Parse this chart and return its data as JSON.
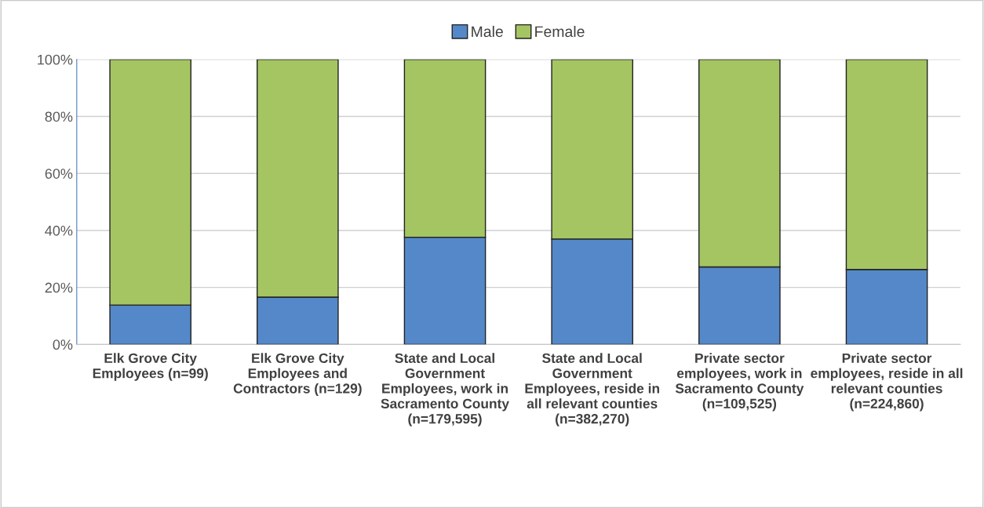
{
  "chart_data": {
    "type": "bar",
    "stacked": true,
    "categories": [
      "Elk Grove City Employees (n=99)",
      "Elk Grove City Employees and Contractors (n=129)",
      "State and Local Government Employees, work in Sacramento County (n=179,595)",
      "State and Local Government Employees, reside in all relevant counties (n=382,270)",
      "Private sector employees, work in Sacramento County (n=109,525)",
      "Private sector employees, reside in all relevant counties (n=224,860)"
    ],
    "series": [
      {
        "name": "Male",
        "color": "#5588c8",
        "values": [
          13.8,
          16.6,
          37.6,
          37.0,
          27.2,
          26.3
        ]
      },
      {
        "name": "Female",
        "color": "#a4c562",
        "values": [
          86.2,
          83.4,
          62.4,
          63.0,
          72.8,
          73.7
        ]
      }
    ],
    "ylim": [
      0,
      100
    ],
    "yticks": [
      {
        "value": 0,
        "label": "0%"
      },
      {
        "value": 20,
        "label": "20%"
      },
      {
        "value": 40,
        "label": "40%"
      },
      {
        "value": 60,
        "label": "60%"
      },
      {
        "value": 80,
        "label": "80%"
      },
      {
        "value": 100,
        "label": "100%"
      }
    ],
    "grid": "y",
    "legend": "top"
  }
}
